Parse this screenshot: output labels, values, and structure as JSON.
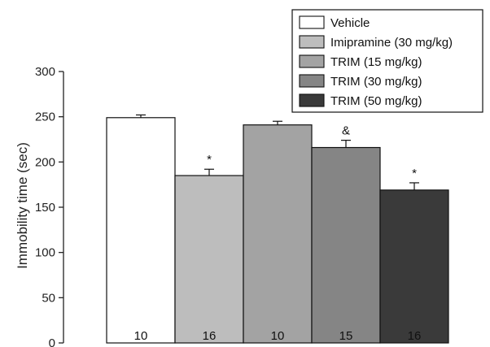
{
  "chart_data": {
    "type": "bar",
    "ylabel": "Immobility time (sec)",
    "ylim": [
      0,
      300
    ],
    "yticks": [
      0,
      50,
      100,
      150,
      200,
      250,
      300
    ],
    "grid": false,
    "legend_position": "top-right",
    "series": [
      {
        "name": "Vehicle",
        "value": 249,
        "error": 3,
        "n": "10",
        "marker": "",
        "color": "#ffffff"
      },
      {
        "name": "Imipramine (30 mg/kg)",
        "value": 185,
        "error": 7,
        "n": "16",
        "marker": "*",
        "color": "#bdbdbd"
      },
      {
        "name": "TRIM (15 mg/kg)",
        "value": 241,
        "error": 4,
        "n": "10",
        "marker": "",
        "color": "#a3a3a3"
      },
      {
        "name": "TRIM (30 mg/kg)",
        "value": 216,
        "error": 8,
        "n": "15",
        "marker": "&",
        "color": "#858585"
      },
      {
        "name": "TRIM (50 mg/kg)",
        "value": 169,
        "error": 8,
        "n": "16",
        "marker": "*",
        "color": "#3a3a3a"
      }
    ]
  }
}
